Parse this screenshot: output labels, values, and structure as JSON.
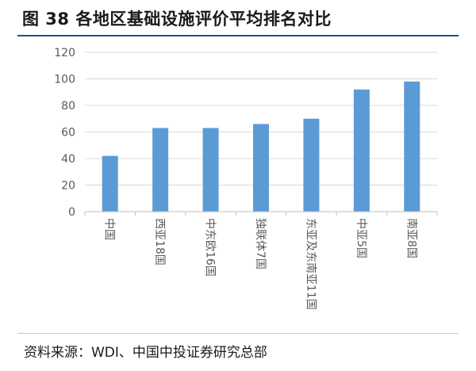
{
  "figure_title": "图 38 各地区基础设施评价平均排名对比",
  "source": "资料来源：WDI、中国中投证券研究总部",
  "colors": {
    "bar": "#5b9bd5",
    "grid": "#d9d9d9",
    "axis": "#bfbfbf",
    "title_rule": "#1f4e8c"
  },
  "chart_data": {
    "type": "bar",
    "title": "",
    "xlabel": "",
    "ylabel": "",
    "categories": [
      "中国",
      "西亚18国",
      "中东欧16国",
      "独联体7国",
      "东亚及东南亚11国",
      "中亚5国",
      "南亚8国"
    ],
    "values": [
      42,
      63,
      63,
      66,
      70,
      92,
      98
    ],
    "ylim": [
      0,
      120
    ],
    "yticks": [
      0,
      20,
      40,
      60,
      80,
      100,
      120
    ],
    "grid": true,
    "legend": "none"
  }
}
